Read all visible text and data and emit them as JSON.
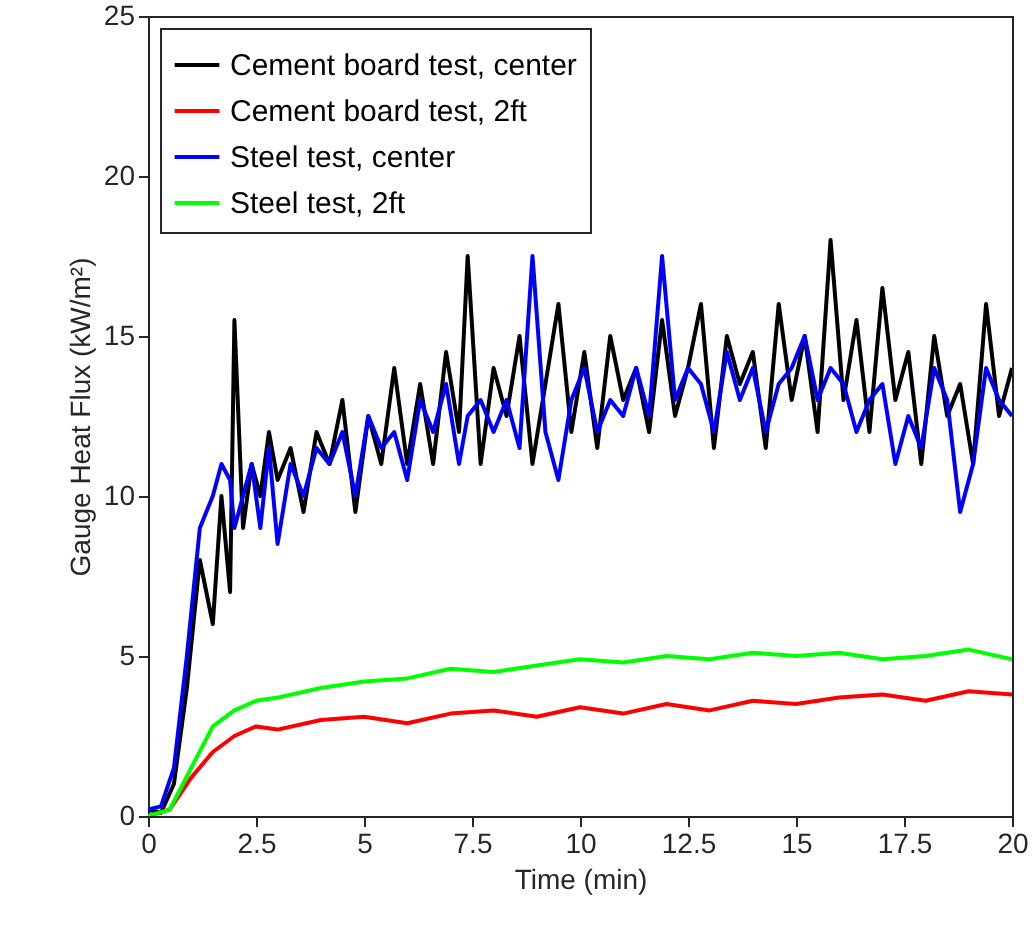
{
  "chart_data": {
    "type": "line",
    "xlabel": "Time (min)",
    "ylabel": "Gauge Heat Flux (kW/m²)",
    "xlim": [
      0,
      20
    ],
    "xticks": [
      0,
      2.5,
      5,
      7.5,
      10,
      12.5,
      15,
      17.5,
      20
    ],
    "ylim": [
      0,
      25
    ],
    "yticks": [
      0,
      5,
      10,
      15,
      20,
      25
    ],
    "legend": "top left",
    "line_style": "solid",
    "series": [
      {
        "name": "Cement board test, center",
        "color": "#000000",
        "x": [
          0,
          0.3,
          0.6,
          0.9,
          1.2,
          1.5,
          1.7,
          1.9,
          2.0,
          2.2,
          2.4,
          2.6,
          2.8,
          3.0,
          3.3,
          3.6,
          3.9,
          4.2,
          4.5,
          4.8,
          5.1,
          5.4,
          5.7,
          6.0,
          6.3,
          6.6,
          6.9,
          7.2,
          7.4,
          7.7,
          8.0,
          8.3,
          8.6,
          8.9,
          9.2,
          9.5,
          9.8,
          10.1,
          10.4,
          10.7,
          11.0,
          11.3,
          11.6,
          11.9,
          12.2,
          12.5,
          12.8,
          13.1,
          13.4,
          13.7,
          14.0,
          14.3,
          14.6,
          14.9,
          15.2,
          15.5,
          15.8,
          16.1,
          16.4,
          16.7,
          17.0,
          17.3,
          17.6,
          17.9,
          18.2,
          18.5,
          18.8,
          19.1,
          19.4,
          19.7,
          20
        ],
        "values": [
          0.2,
          0.1,
          1,
          4,
          8,
          6,
          10,
          7,
          15.5,
          9,
          11,
          10,
          12,
          10.5,
          11.5,
          9.5,
          12,
          11,
          13,
          9.5,
          12.5,
          11,
          14,
          11,
          13.5,
          11,
          14.5,
          12,
          17.5,
          11,
          14,
          12.5,
          15,
          11,
          13.5,
          16,
          12,
          14.5,
          11.5,
          15,
          13,
          14,
          12,
          15.5,
          12.5,
          14,
          16,
          11.5,
          15,
          13.5,
          14.5,
          11.5,
          16,
          13,
          15,
          12,
          18,
          13,
          15.5,
          12,
          16.5,
          13,
          14.5,
          11,
          15,
          12.5,
          13.5,
          11,
          16,
          12.5,
          14
        ]
      },
      {
        "name": "Cement board test, 2ft",
        "color": "#ff0000",
        "x": [
          0,
          0.5,
          1,
          1.5,
          2,
          2.5,
          3,
          4,
          5,
          6,
          7,
          8,
          9,
          10,
          11,
          12,
          13,
          14,
          15,
          16,
          17,
          18,
          19,
          20
        ],
        "values": [
          0,
          0.2,
          1.2,
          2,
          2.5,
          2.8,
          2.7,
          3,
          3.1,
          2.9,
          3.2,
          3.3,
          3.1,
          3.4,
          3.2,
          3.5,
          3.3,
          3.6,
          3.5,
          3.7,
          3.8,
          3.6,
          3.9,
          3.8
        ]
      },
      {
        "name": "Steel test, center",
        "color": "#0000ff",
        "x": [
          0,
          0.3,
          0.6,
          0.9,
          1.2,
          1.5,
          1.7,
          1.9,
          2.0,
          2.2,
          2.4,
          2.6,
          2.8,
          3.0,
          3.3,
          3.6,
          3.9,
          4.2,
          4.5,
          4.8,
          5.1,
          5.4,
          5.7,
          6.0,
          6.3,
          6.6,
          6.9,
          7.2,
          7.4,
          7.7,
          8.0,
          8.3,
          8.6,
          8.9,
          9.2,
          9.5,
          9.8,
          10.1,
          10.4,
          10.7,
          11.0,
          11.3,
          11.6,
          11.9,
          12.2,
          12.5,
          12.8,
          13.1,
          13.4,
          13.7,
          14.0,
          14.3,
          14.6,
          14.9,
          15.2,
          15.5,
          15.8,
          16.1,
          16.4,
          16.7,
          17.0,
          17.3,
          17.6,
          17.9,
          18.2,
          18.5,
          18.8,
          19.1,
          19.4,
          19.7,
          20
        ],
        "values": [
          0.2,
          0.3,
          1.5,
          5,
          9,
          10,
          11,
          10.5,
          9,
          10,
          11,
          9,
          11.5,
          8.5,
          11,
          10,
          11.5,
          11,
          12,
          10,
          12.5,
          11.5,
          12,
          10.5,
          13,
          12,
          13.5,
          11,
          12.5,
          13,
          12,
          13,
          11.5,
          17.5,
          12,
          10.5,
          13,
          14,
          12,
          13,
          12.5,
          14,
          12.5,
          17.5,
          13,
          14,
          13.5,
          12,
          14.5,
          13,
          14,
          12,
          13.5,
          14,
          15,
          13,
          14,
          13.5,
          12,
          13,
          13.5,
          11,
          12.5,
          11.5,
          14,
          13,
          9.5,
          11,
          14,
          13,
          12.5
        ]
      },
      {
        "name": "Steel test, 2ft",
        "color": "#00ff00",
        "x": [
          0,
          0.5,
          1,
          1.5,
          2,
          2.5,
          3,
          4,
          5,
          6,
          7,
          8,
          9,
          10,
          11,
          12,
          13,
          14,
          15,
          16,
          17,
          18,
          19,
          20
        ],
        "values": [
          0,
          0.2,
          1.5,
          2.8,
          3.3,
          3.6,
          3.7,
          4,
          4.2,
          4.3,
          4.6,
          4.5,
          4.7,
          4.9,
          4.8,
          5,
          4.9,
          5.1,
          5,
          5.1,
          4.9,
          5,
          5.2,
          4.9
        ]
      }
    ]
  }
}
